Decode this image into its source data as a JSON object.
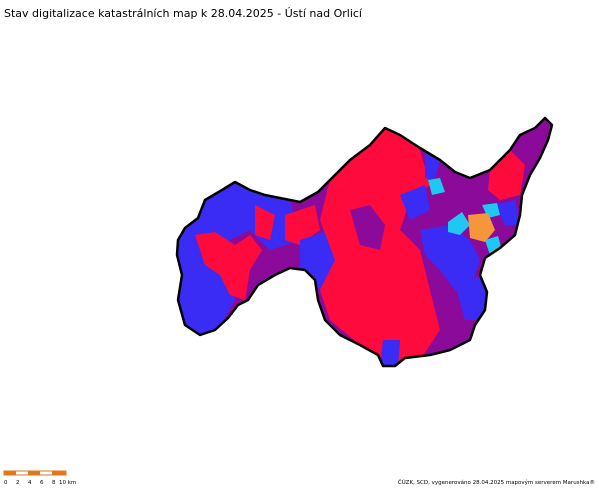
{
  "header": {
    "title": "Stav digitalizace katastrálních map k 28.04.2025 - Ústí nad Orlicí"
  },
  "scale": {
    "labels": [
      "0",
      "2",
      "4",
      "6",
      "8",
      "10 km"
    ]
  },
  "footer": {
    "credit": "ČÚZK, SCD, vygenerováno 28.04.2025 mapovým serverem Marushka®"
  }
}
